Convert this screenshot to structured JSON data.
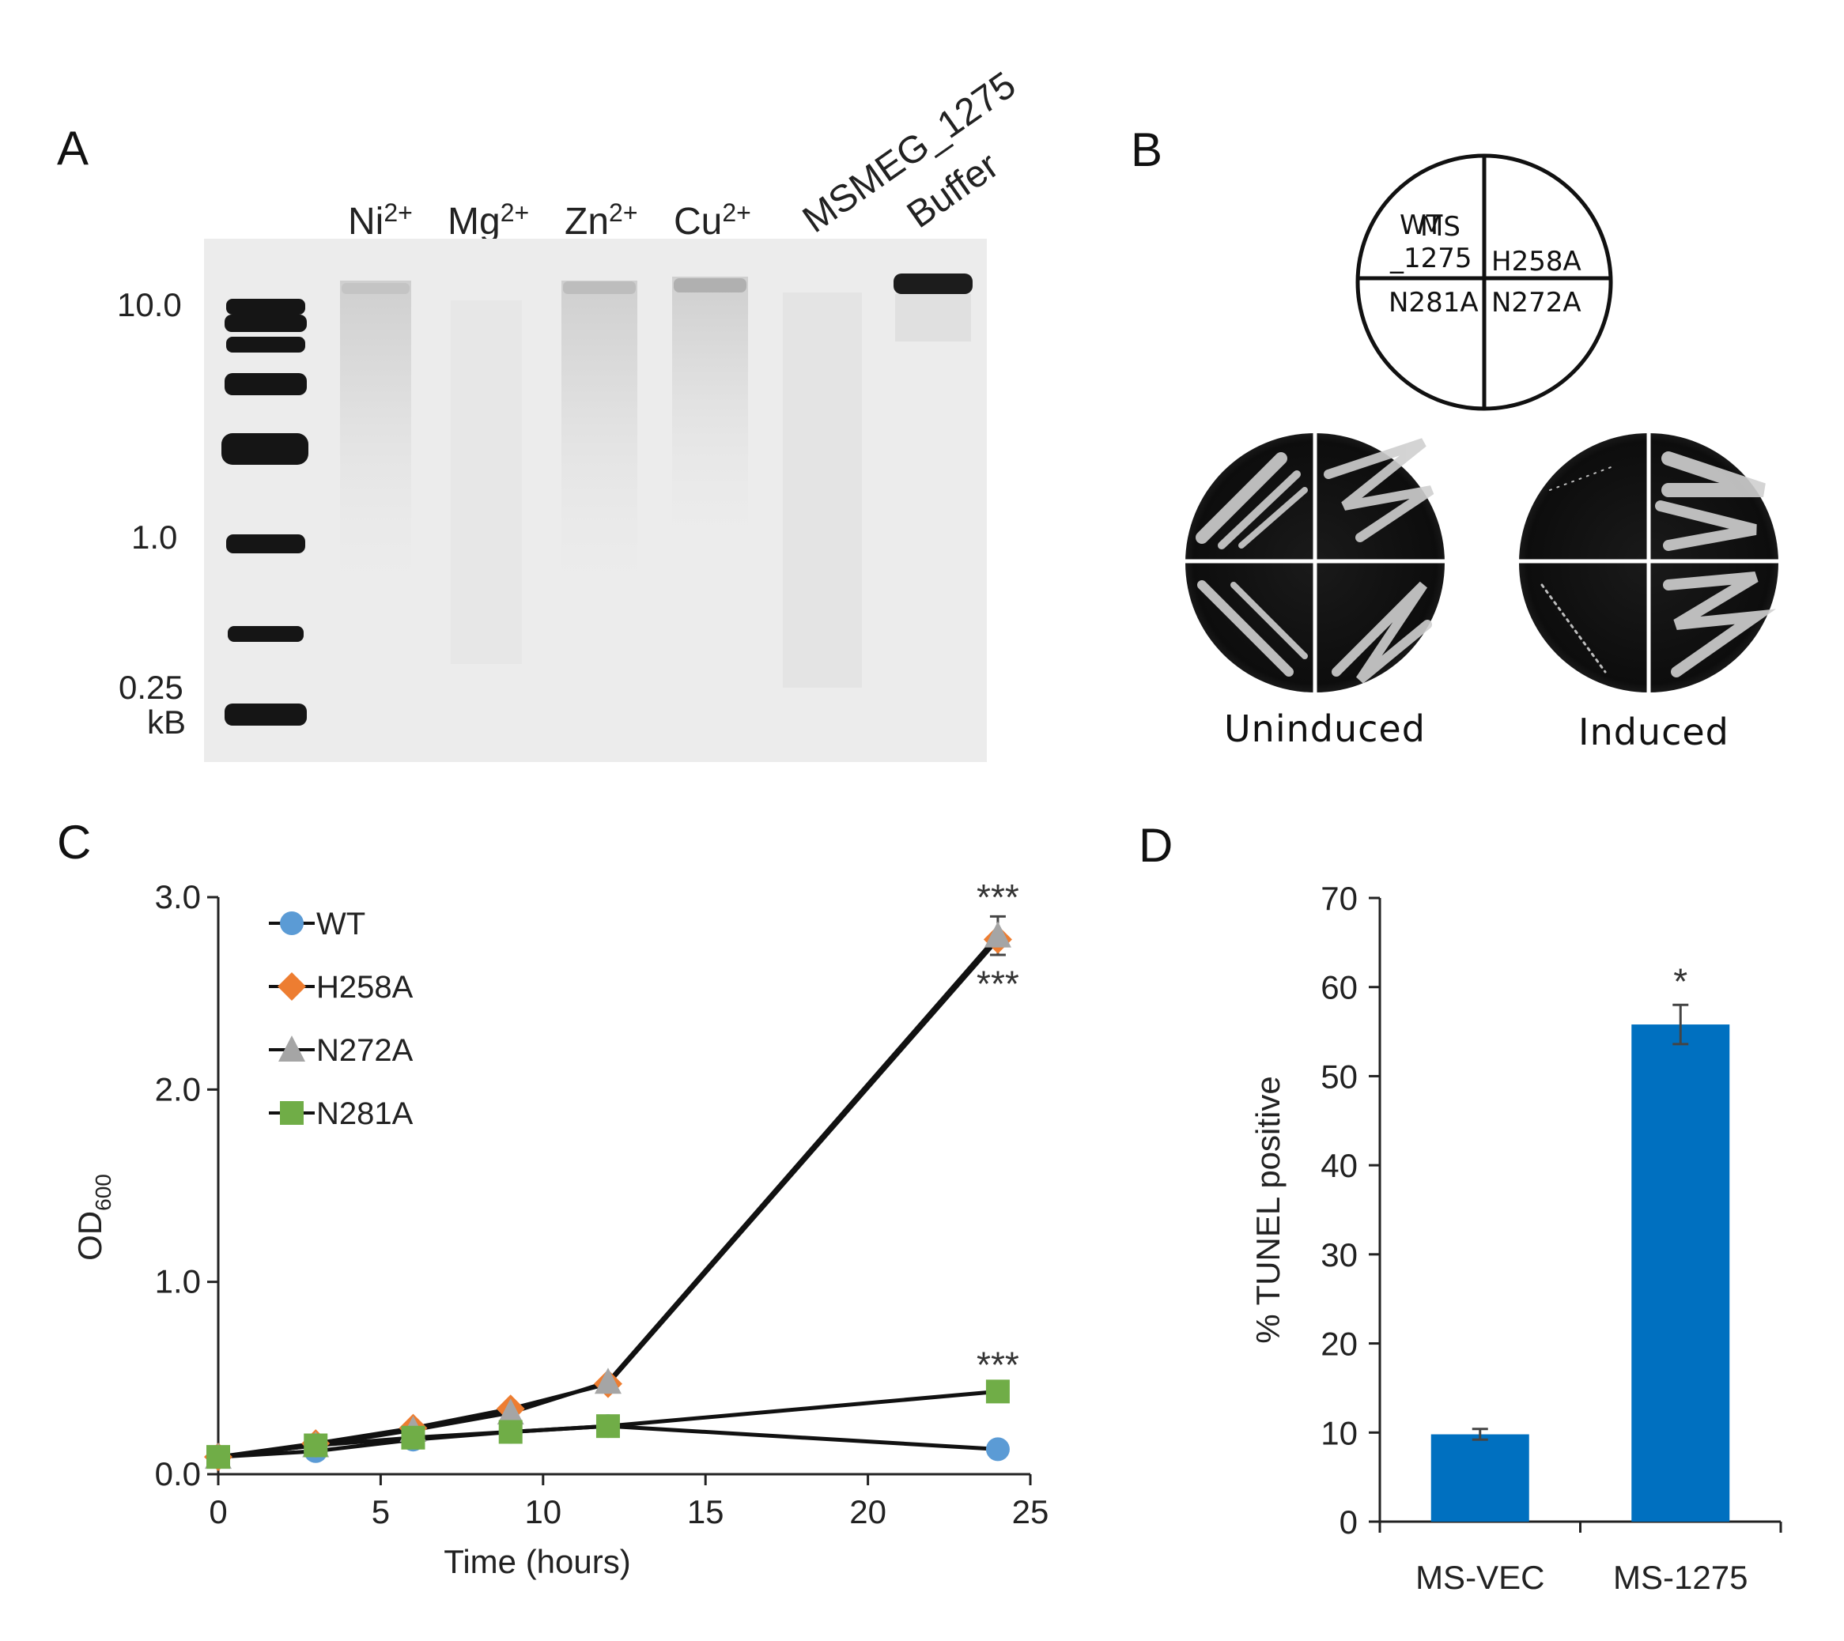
{
  "panels": {
    "A": {
      "letter": "A",
      "lanes": [
        {
          "label": "Ni",
          "sup": "2+"
        },
        {
          "label": "Mg",
          "sup": "2+"
        },
        {
          "label": "Zn",
          "sup": "2+"
        },
        {
          "label": "Cu",
          "sup": "2+"
        },
        {
          "label": "MSMEG_1275",
          "sup": ""
        },
        {
          "label": "Buffer",
          "sup": ""
        }
      ],
      "ladder_labels": [
        "10.0",
        "1.0",
        "0.25",
        "kB"
      ]
    },
    "B": {
      "letter": "B",
      "quadrants": {
        "top_left_sup": "WT",
        "top_left_line1": "MS",
        "top_left_line2": "_1275",
        "top_right": "H258A",
        "bottom_left": "N281A",
        "bottom_right": "N272A"
      },
      "plate_captions": [
        "Uninduced",
        "Induced"
      ]
    },
    "C": {
      "letter": "C"
    },
    "D": {
      "letter": "D"
    }
  },
  "chart_data": [
    {
      "type": "line",
      "panel": "C",
      "xlabel": "Time (hours)",
      "ylabel": "OD",
      "ylabel_sub": "600",
      "xlim": [
        0,
        25
      ],
      "ylim": [
        0,
        3.0
      ],
      "xticks": [
        "0",
        "5",
        "10",
        "15",
        "20",
        "25"
      ],
      "yticks": [
        "0.0",
        "1.0",
        "2.0",
        "3.0"
      ],
      "series": [
        {
          "name": "WT",
          "marker": "circle",
          "color": "#5b9bd5",
          "x": [
            0,
            3,
            6,
            9,
            12,
            24
          ],
          "y": [
            0.09,
            0.12,
            0.18,
            0.22,
            0.25,
            0.13
          ],
          "err": [
            0,
            0,
            0,
            0,
            0,
            0
          ]
        },
        {
          "name": "H258A",
          "marker": "diamond",
          "color": "#ed7d31",
          "x": [
            0,
            3,
            6,
            9,
            12,
            24
          ],
          "y": [
            0.09,
            0.16,
            0.24,
            0.34,
            0.47,
            2.78
          ],
          "err": [
            0,
            0,
            0,
            0,
            0,
            0
          ]
        },
        {
          "name": "N272A",
          "marker": "triangle",
          "color": "#a5a5a5",
          "x": [
            0,
            3,
            6,
            9,
            12,
            24
          ],
          "y": [
            0.09,
            0.15,
            0.23,
            0.32,
            0.48,
            2.8
          ],
          "err": [
            0,
            0,
            0,
            0,
            0,
            0.1
          ]
        },
        {
          "name": "N281A",
          "marker": "square",
          "color": "#70ad47",
          "x": [
            0,
            3,
            6,
            9,
            12,
            24
          ],
          "y": [
            0.09,
            0.15,
            0.19,
            0.22,
            0.25,
            0.43
          ],
          "err": [
            0,
            0,
            0,
            0,
            0,
            0
          ]
        }
      ],
      "annotations": [
        {
          "text": "***",
          "x": 24,
          "y": 3.0
        },
        {
          "text": "***",
          "x": 24,
          "y": 2.55
        },
        {
          "text": "***",
          "x": 24,
          "y": 0.57
        }
      ]
    },
    {
      "type": "bar",
      "panel": "D",
      "categories": [
        "MS-VEC",
        "MS-1275"
      ],
      "values": [
        9.8,
        55.8
      ],
      "errors": [
        0.6,
        2.2
      ],
      "color": "#0070c0",
      "ylabel": "% TUNEL positive",
      "ylim": [
        0,
        70
      ],
      "yticks": [
        "0",
        "10",
        "20",
        "30",
        "40",
        "50",
        "60",
        "70"
      ],
      "annotations": [
        {
          "text": "*",
          "category": "MS-1275"
        }
      ]
    }
  ]
}
